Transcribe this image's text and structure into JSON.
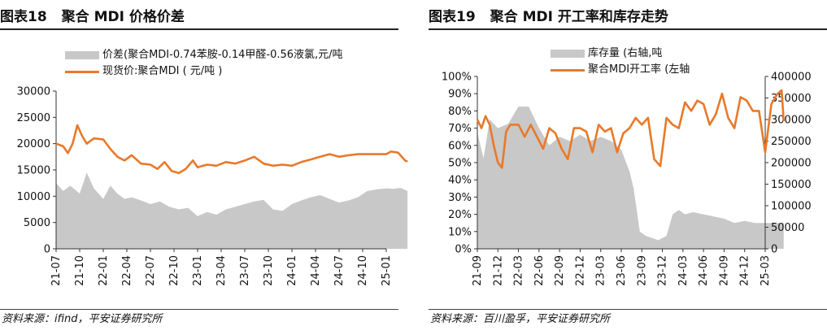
{
  "left": {
    "num": "图表18",
    "title": "聚合 MDI 价格价差",
    "source": "资料来源：ifind，平安证券研究所",
    "legend": {
      "area": "价差(聚合MDI-0.74苯胺-0.14甲醛-0.56液氯,元/吨",
      "line": "现货价:聚合MDI ( 元/吨 )"
    }
  },
  "right": {
    "num": "图表19",
    "title": "聚合 MDI 开工率和库存走势",
    "source": "资料来源：百川盈孚，平安证券研究所",
    "legend": {
      "area": "库存量 (右轴,吨",
      "line": "聚合MDI开工率 (左轴"
    }
  },
  "colors": {
    "line": "#e8792a",
    "area": "#c8c8c8"
  },
  "chart_data": [
    {
      "type": "area+line",
      "title": "聚合 MDI 价格价差",
      "x_labels": [
        "21-07",
        "21-10",
        "22-01",
        "22-04",
        "22-07",
        "22-10",
        "23-01",
        "23-04",
        "23-07",
        "23-10",
        "24-01",
        "24-04",
        "24-07",
        "24-10",
        "25-01"
      ],
      "ylim": [
        0,
        30000
      ],
      "yticks": [
        0,
        5000,
        10000,
        15000,
        20000,
        25000,
        30000
      ],
      "series": [
        {
          "name": "价差(聚合MDI-0.74苯胺-0.14甲醛-0.56液氯,元/吨",
          "kind": "area",
          "x": [
            0,
            0.3,
            0.6,
            1,
            1.3,
            1.6,
            2,
            2.3,
            2.6,
            2.9,
            3.2,
            3.6,
            4,
            4.4,
            4.8,
            5.2,
            5.6,
            6,
            6.4,
            6.8,
            7.2,
            7.6,
            8,
            8.4,
            8.8,
            9.2,
            9.6,
            10,
            10.4,
            10.8,
            11.2,
            11.6,
            12,
            12.4,
            12.8,
            13.2,
            13.6,
            14,
            14.3,
            14.6,
            14.9
          ],
          "y": [
            12500,
            11000,
            12000,
            10500,
            14500,
            11500,
            9500,
            12000,
            10500,
            9500,
            9800,
            9200,
            8500,
            9000,
            8000,
            7500,
            7800,
            6200,
            7000,
            6500,
            7500,
            8000,
            8500,
            9000,
            9300,
            7500,
            7200,
            8500,
            9200,
            9800,
            10200,
            9500,
            8800,
            9200,
            9800,
            11000,
            11300,
            11500,
            11400,
            11600,
            11000
          ]
        },
        {
          "name": "现货价:聚合MDI ( 元/吨 )",
          "kind": "line",
          "x": [
            0,
            0.3,
            0.5,
            0.7,
            0.9,
            1.1,
            1.3,
            1.6,
            2,
            2.3,
            2.6,
            2.9,
            3.2,
            3.6,
            4,
            4.3,
            4.6,
            4.9,
            5.2,
            5.5,
            5.8,
            6,
            6.4,
            6.8,
            7.2,
            7.6,
            8,
            8.4,
            8.8,
            9.2,
            9.6,
            10,
            10.4,
            10.8,
            11.2,
            11.6,
            12,
            12.4,
            12.8,
            13.2,
            13.6,
            14,
            14.2,
            14.5,
            14.8,
            14.9
          ],
          "y": [
            20000,
            19500,
            18200,
            20000,
            23500,
            21500,
            20000,
            21000,
            20800,
            19000,
            17500,
            16800,
            17800,
            16200,
            16000,
            15200,
            16500,
            14800,
            14400,
            15200,
            16800,
            15500,
            16000,
            15800,
            16500,
            16200,
            16800,
            17500,
            16200,
            15800,
            16000,
            15800,
            16500,
            17000,
            17500,
            18000,
            17500,
            17800,
            18000,
            18000,
            18000,
            18000,
            18500,
            18300,
            16800,
            16600
          ]
        }
      ]
    },
    {
      "type": "area+line",
      "title": "聚合 MDI 开工率和库存走势",
      "x_labels": [
        "21-09",
        "21-12",
        "22-03",
        "22-06",
        "22-09",
        "22-12",
        "23-03",
        "23-06",
        "23-09",
        "23-12",
        "24-03",
        "24-06",
        "24-09",
        "24-12",
        "25-03"
      ],
      "ylim_left": [
        0,
        100
      ],
      "yticks_left": [
        "0%",
        "10%",
        "20%",
        "30%",
        "40%",
        "50%",
        "60%",
        "70%",
        "80%",
        "90%",
        "100%"
      ],
      "ylim_right": [
        0,
        400000
      ],
      "yticks_right": [
        0,
        50000,
        100000,
        150000,
        200000,
        250000,
        300000,
        350000,
        400000
      ],
      "series": [
        {
          "name": "库存量 (右轴,吨",
          "kind": "area",
          "axis": "right",
          "x": [
            0,
            0.3,
            0.6,
            1,
            1.5,
            2,
            2.5,
            3,
            3.5,
            4,
            4.5,
            5,
            5.5,
            6,
            6.5,
            7,
            7.4,
            7.6,
            7.9,
            8.2,
            8.5,
            8.8,
            9.2,
            9.5,
            9.8,
            10.1,
            10.5,
            11,
            11.5,
            12,
            12.5,
            13,
            13.5,
            14,
            14.5,
            14.9
          ],
          "y": [
            270000,
            210000,
            300000,
            280000,
            290000,
            330000,
            330000,
            280000,
            240000,
            260000,
            250000,
            265000,
            250000,
            260000,
            250000,
            230000,
            180000,
            140000,
            40000,
            30000,
            25000,
            20000,
            30000,
            80000,
            90000,
            80000,
            85000,
            80000,
            75000,
            70000,
            60000,
            65000,
            60000,
            60000,
            60000,
            60000
          ]
        },
        {
          "name": "聚合MDI开工率 (左轴",
          "kind": "line",
          "axis": "left",
          "x": [
            0,
            0.2,
            0.4,
            0.6,
            0.8,
            1,
            1.2,
            1.4,
            1.6,
            1.8,
            2,
            2.3,
            2.6,
            2.9,
            3.2,
            3.5,
            3.8,
            4.1,
            4.4,
            4.7,
            5,
            5.3,
            5.6,
            5.9,
            6.2,
            6.5,
            6.8,
            7.1,
            7.4,
            7.7,
            8,
            8.3,
            8.6,
            8.9,
            9.2,
            9.5,
            9.8,
            10.1,
            10.4,
            10.7,
            11,
            11.3,
            11.6,
            11.9,
            12.2,
            12.5,
            12.8,
            13.1,
            13.4,
            13.7,
            14,
            14.3,
            14.6,
            14.8,
            14.9
          ],
          "y": [
            75,
            70,
            77,
            72,
            60,
            50,
            47,
            68,
            72,
            72,
            72,
            65,
            72,
            65,
            58,
            70,
            67,
            58,
            52,
            70,
            70,
            68,
            56,
            72,
            68,
            70,
            56,
            67,
            70,
            76,
            72,
            76,
            52,
            48,
            76,
            72,
            70,
            85,
            80,
            86,
            84,
            72,
            78,
            90,
            76,
            70,
            88,
            86,
            80,
            80,
            56,
            84,
            90,
            92,
            74
          ]
        }
      ]
    }
  ]
}
